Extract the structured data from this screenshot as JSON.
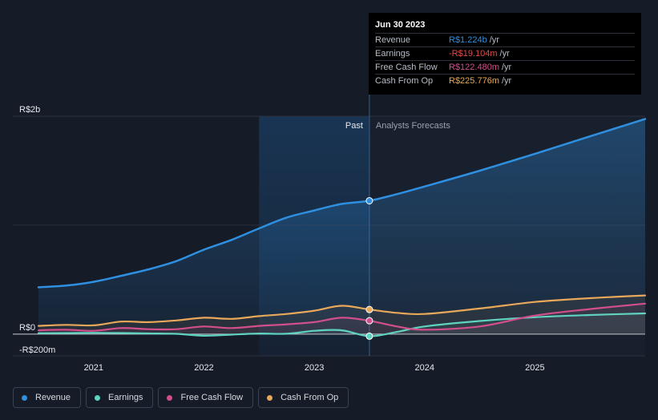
{
  "chart_data": {
    "type": "area",
    "x_ticks": [
      "2021",
      "2022",
      "2023",
      "2024",
      "2025"
    ],
    "y_ticks": [
      {
        "label": "R$2b",
        "value": 2000
      },
      {
        "label": "R$0",
        "value": 0
      },
      {
        "label": "-R$200m",
        "value": -200
      }
    ],
    "ylim": [
      -200,
      2000
    ],
    "xlim": [
      2020.5,
      2026.0
    ],
    "units": "R$ millions",
    "past_label": "Past",
    "forecast_label": "Analysts Forecasts",
    "divider_x": 2023.5,
    "highlight_start": 2022.5,
    "series": [
      {
        "name": "Revenue",
        "key": "revenue",
        "color": "#2f8fe0",
        "fill": true,
        "points": [
          [
            2020.5,
            430
          ],
          [
            2020.75,
            445
          ],
          [
            2021.0,
            480
          ],
          [
            2021.25,
            535
          ],
          [
            2021.5,
            595
          ],
          [
            2021.75,
            670
          ],
          [
            2022.0,
            775
          ],
          [
            2022.25,
            865
          ],
          [
            2022.5,
            970
          ],
          [
            2022.75,
            1070
          ],
          [
            2023.0,
            1135
          ],
          [
            2023.25,
            1195
          ],
          [
            2023.5,
            1224
          ],
          [
            2023.75,
            1285
          ],
          [
            2024.0,
            1355
          ],
          [
            2024.5,
            1500
          ],
          [
            2025.0,
            1655
          ],
          [
            2025.5,
            1815
          ],
          [
            2026.0,
            1975
          ]
        ]
      },
      {
        "name": "Earnings",
        "key": "earnings",
        "color": "#5fd3c0",
        "fill": false,
        "points": [
          [
            2020.5,
            8
          ],
          [
            2020.75,
            10
          ],
          [
            2021.0,
            12
          ],
          [
            2021.25,
            10
          ],
          [
            2021.5,
            6
          ],
          [
            2021.75,
            2
          ],
          [
            2022.0,
            -15
          ],
          [
            2022.25,
            -5
          ],
          [
            2022.5,
            5
          ],
          [
            2022.75,
            3
          ],
          [
            2023.0,
            30
          ],
          [
            2023.25,
            35
          ],
          [
            2023.5,
            -19.104
          ],
          [
            2023.75,
            20
          ],
          [
            2024.0,
            70
          ],
          [
            2024.5,
            120
          ],
          [
            2025.0,
            155
          ],
          [
            2025.5,
            175
          ],
          [
            2026.0,
            190
          ]
        ]
      },
      {
        "name": "Free Cash Flow",
        "key": "fcf",
        "color": "#d24e8c",
        "fill": false,
        "points": [
          [
            2020.5,
            35
          ],
          [
            2020.75,
            40
          ],
          [
            2021.0,
            30
          ],
          [
            2021.25,
            55
          ],
          [
            2021.5,
            45
          ],
          [
            2021.75,
            45
          ],
          [
            2022.0,
            70
          ],
          [
            2022.25,
            55
          ],
          [
            2022.5,
            75
          ],
          [
            2022.75,
            90
          ],
          [
            2023.0,
            110
          ],
          [
            2023.25,
            150
          ],
          [
            2023.5,
            122.48
          ],
          [
            2023.75,
            70
          ],
          [
            2024.0,
            40
          ],
          [
            2024.5,
            70
          ],
          [
            2025.0,
            170
          ],
          [
            2025.5,
            230
          ],
          [
            2026.0,
            280
          ]
        ]
      },
      {
        "name": "Cash From Op",
        "key": "cfo",
        "color": "#e8a85a",
        "fill": false,
        "points": [
          [
            2020.5,
            75
          ],
          [
            2020.75,
            85
          ],
          [
            2021.0,
            80
          ],
          [
            2021.25,
            115
          ],
          [
            2021.5,
            110
          ],
          [
            2021.75,
            125
          ],
          [
            2022.0,
            150
          ],
          [
            2022.25,
            140
          ],
          [
            2022.5,
            165
          ],
          [
            2022.75,
            185
          ],
          [
            2023.0,
            215
          ],
          [
            2023.25,
            260
          ],
          [
            2023.5,
            225.776
          ],
          [
            2023.75,
            195
          ],
          [
            2024.0,
            185
          ],
          [
            2024.5,
            235
          ],
          [
            2025.0,
            295
          ],
          [
            2025.5,
            330
          ],
          [
            2026.0,
            355
          ]
        ]
      }
    ]
  },
  "tooltip": {
    "date": "Jun 30 2023",
    "rows": [
      {
        "label": "Revenue",
        "value": "R$1.224b",
        "unit": "/yr",
        "color": "#2f8fe0"
      },
      {
        "label": "Earnings",
        "value": "-R$19.104m",
        "unit": "/yr",
        "color": "#e64a4a"
      },
      {
        "label": "Free Cash Flow",
        "value": "R$122.480m",
        "unit": "/yr",
        "color": "#d24e8c"
      },
      {
        "label": "Cash From Op",
        "value": "R$225.776m",
        "unit": "/yr",
        "color": "#e8a85a"
      }
    ]
  },
  "legend": [
    {
      "label": "Revenue",
      "color": "#2f8fe0"
    },
    {
      "label": "Earnings",
      "color": "#5fd3c0"
    },
    {
      "label": "Free Cash Flow",
      "color": "#d24e8c"
    },
    {
      "label": "Cash From Op",
      "color": "#e8a85a"
    }
  ]
}
